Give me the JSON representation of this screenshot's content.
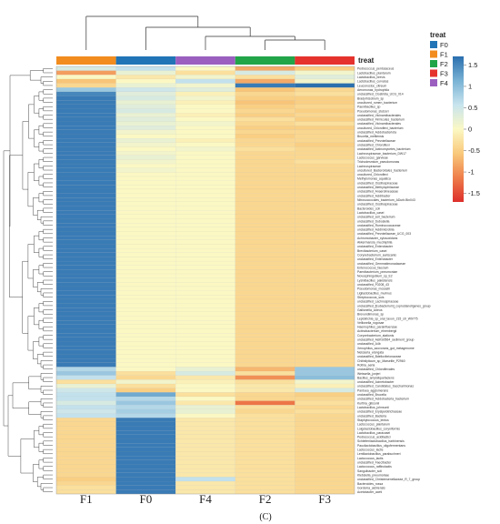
{
  "chart_data": {
    "type": "heatmap",
    "title": "",
    "caption": "(C)",
    "columns": [
      "F1",
      "F0",
      "F4",
      "F2",
      "F3"
    ],
    "annotation": {
      "title": "treat",
      "groups": [
        {
          "name": "F0",
          "color": "#2175b6"
        },
        {
          "name": "F1",
          "color": "#f28c1e"
        },
        {
          "name": "F2",
          "color": "#22a548"
        },
        {
          "name": "F3",
          "color": "#e5322d"
        },
        {
          "name": "F4",
          "color": "#9b5fc0"
        }
      ]
    },
    "colorbar": {
      "ticks": [
        "1.5",
        "1",
        "0.5",
        "0",
        "-0.5",
        "-1",
        "-1.5"
      ],
      "range": [
        -1.7,
        1.7
      ],
      "colors": [
        "#2b6fae",
        "#79b2d4",
        "#c8e4ee",
        "#fbf8c4",
        "#f9c97b",
        "#ee7e4b",
        "#dd2f2b"
      ]
    },
    "rows": [
      {
        "label": "Pediococcus_pentosaceus",
        "values": [
          0.4,
          0.6,
          0.0,
          -0.8,
          -0.5
        ]
      },
      {
        "label": "Lactobacillus_plantarum",
        "values": [
          -0.9,
          0.2,
          -0.3,
          0.4,
          0.1
        ]
      },
      {
        "label": "Lactobacillus_brevis",
        "values": [
          0.0,
          -0.2,
          0.1,
          -0.3,
          0.3
        ]
      },
      {
        "label": "Lactobacillus_curvatus",
        "values": [
          -0.6,
          0.0,
          0.6,
          -0.8,
          0.1
        ]
      },
      {
        "label": "Leuconostoc_citreum",
        "values": [
          -0.4,
          0.2,
          0.1,
          1.6,
          1.7
        ]
      },
      {
        "label": "Aeromonas_hydrophila",
        "values": [
          0.9,
          0.5,
          0.3,
          -0.6,
          -0.4
        ]
      },
      {
        "label": "unclassified_Clostridia_UCG_014",
        "values": [
          1.5,
          0.3,
          -0.1,
          -0.4,
          -0.3
        ]
      },
      {
        "label": "Bradyrhizobium_sp",
        "values": [
          1.6,
          0.4,
          0.1,
          -0.5,
          -0.5
        ]
      },
      {
        "label": "uncultured_rumen_bacterium",
        "values": [
          1.6,
          0.2,
          -0.1,
          -0.6,
          -0.5
        ]
      },
      {
        "label": "Paenibacillus_sp",
        "values": [
          1.6,
          0.3,
          0.0,
          -0.5,
          -0.4
        ]
      },
      {
        "label": "Pseudomonas_stutzeri",
        "values": [
          1.6,
          0.4,
          0.0,
          -0.4,
          -0.5
        ]
      },
      {
        "label": "unclassified_Vicinamibacterales",
        "values": [
          1.6,
          0.2,
          -0.1,
          -0.5,
          -0.4
        ]
      },
      {
        "label": "unclassified_Firmicutes_bacterium",
        "values": [
          1.6,
          0.3,
          0.0,
          -0.3,
          -0.5
        ]
      },
      {
        "label": "unclassified_Vicinamibacterales",
        "values": [
          1.6,
          0.2,
          0.1,
          -0.4,
          -0.3
        ]
      },
      {
        "label": "uncultured_Chloroflexi_bacterium",
        "values": [
          1.6,
          0.3,
          0.0,
          -0.5,
          -0.5
        ]
      },
      {
        "label": "unclassified_Acidobacteriota",
        "values": [
          1.6,
          0.1,
          0.0,
          -0.4,
          -0.4
        ]
      },
      {
        "label": "Brucella_melitensis",
        "values": [
          1.6,
          0.0,
          0.0,
          -0.5,
          -0.4
        ]
      },
      {
        "label": "unclassified_Prevotellaceae",
        "values": [
          1.6,
          0.2,
          -0.1,
          -0.4,
          -0.4
        ]
      },
      {
        "label": "unclassified_Chloroflexi",
        "values": [
          1.6,
          0.1,
          0.0,
          -0.4,
          -0.5
        ]
      },
      {
        "label": "unclassified_Actinomycetes_bacterium",
        "values": [
          1.6,
          0.0,
          0.1,
          -0.3,
          -0.4
        ]
      },
      {
        "label": "Lachnospiraceae_bacterium_DW17",
        "values": [
          1.6,
          0.1,
          0.0,
          -0.4,
          -0.4
        ]
      },
      {
        "label": "Lactococcus_garvieae",
        "values": [
          1.6,
          0.2,
          0.0,
          -0.4,
          -0.4
        ]
      },
      {
        "label": "Trichodesmium_pseudomonas",
        "values": [
          1.6,
          0.1,
          0.0,
          -0.4,
          -0.3
        ]
      },
      {
        "label": "Lachnospiraceae",
        "values": [
          1.6,
          0.0,
          0.0,
          -0.4,
          -0.4
        ]
      },
      {
        "label": "uncultured_Bacteroidales_bacterium",
        "values": [
          1.6,
          0.1,
          0.0,
          -0.4,
          -0.4
        ]
      },
      {
        "label": "uncultured_Chloroflexi",
        "values": [
          1.6,
          0.0,
          0.0,
          -0.4,
          -0.4
        ]
      },
      {
        "label": "Methylomonas_aquatica",
        "values": [
          1.6,
          0.0,
          0.0,
          -0.4,
          -0.4
        ]
      },
      {
        "label": "unclassified_Oscillospiraceae",
        "values": [
          1.6,
          0.0,
          0.0,
          -0.4,
          -0.4
        ]
      },
      {
        "label": "unclassified_Methylophilaceae",
        "values": [
          1.6,
          0.0,
          0.0,
          -0.4,
          -0.4
        ]
      },
      {
        "label": "unclassified_Anaerolineaceae",
        "values": [
          1.6,
          0.0,
          0.0,
          -0.4,
          -0.4
        ]
      },
      {
        "label": "unclassified_Acidibacter",
        "values": [
          1.6,
          0.0,
          0.0,
          -0.4,
          -0.4
        ]
      },
      {
        "label": "Nitrosococcales_bacterium_ADurb.Bin043",
        "values": [
          1.6,
          0.0,
          0.0,
          -0.4,
          -0.4
        ]
      },
      {
        "label": "unclassified_Oscillospiraceae",
        "values": [
          1.6,
          0.0,
          0.0,
          -0.4,
          -0.4
        ]
      },
      {
        "label": "Bacteroides_coli",
        "values": [
          1.6,
          0.0,
          0.0,
          -0.4,
          -0.4
        ]
      },
      {
        "label": "Lactobacillus_casei",
        "values": [
          1.6,
          0.0,
          0.0,
          -0.4,
          -0.4
        ]
      },
      {
        "label": "unclassified_soil_bacterium",
        "values": [
          1.6,
          0.0,
          0.0,
          -0.4,
          -0.4
        ]
      },
      {
        "label": "unclassified_Dubosiella",
        "values": [
          1.6,
          0.0,
          0.0,
          -0.4,
          -0.4
        ]
      },
      {
        "label": "unclassified_Ruminococcaceae",
        "values": [
          1.6,
          0.0,
          0.0,
          -0.4,
          -0.4
        ]
      },
      {
        "label": "unclassified_Acidimicrobiia",
        "values": [
          1.6,
          0.0,
          0.0,
          -0.4,
          -0.4
        ]
      },
      {
        "label": "unclassified_Prevotellaceae_UCG_003",
        "values": [
          1.6,
          0.0,
          0.0,
          -0.4,
          -0.4
        ]
      },
      {
        "label": "Achromobacter_xylosoxidans",
        "values": [
          1.6,
          0.0,
          0.0,
          -0.4,
          -0.4
        ]
      },
      {
        "label": "Akkermansia_muciniphila",
        "values": [
          1.6,
          0.0,
          0.0,
          -0.4,
          -0.4
        ]
      },
      {
        "label": "unclassified_Enterobacter",
        "values": [
          1.6,
          0.0,
          0.0,
          -0.4,
          -0.4
        ]
      },
      {
        "label": "Brevibacterium_casei",
        "values": [
          1.6,
          0.0,
          0.0,
          -0.4,
          -0.4
        ]
      },
      {
        "label": "Corynebacterium_auriscanis",
        "values": [
          1.6,
          0.0,
          0.0,
          -0.4,
          -0.4
        ]
      },
      {
        "label": "unclassified_Enterobacter",
        "values": [
          1.6,
          0.0,
          0.0,
          -0.4,
          -0.4
        ]
      },
      {
        "label": "unclassified_Gemmatimonadaceae",
        "values": [
          1.6,
          0.0,
          0.0,
          -0.4,
          -0.4
        ]
      },
      {
        "label": "Enterococcus_faecium",
        "values": [
          1.6,
          0.0,
          0.0,
          -0.4,
          -0.4
        ]
      },
      {
        "label": "Paenibacterium_pneumoniae",
        "values": [
          1.6,
          0.0,
          0.0,
          -0.4,
          -0.4
        ]
      },
      {
        "label": "Novosphingobium_sp_E2",
        "values": [
          1.6,
          0.0,
          0.0,
          -0.4,
          -0.4
        ]
      },
      {
        "label": "Lysinibacillus_pakistensis",
        "values": [
          1.6,
          0.0,
          0.0,
          -0.4,
          -0.4
        ]
      },
      {
        "label": "unclassified_F0208_43",
        "values": [
          1.6,
          0.0,
          0.0,
          -0.4,
          -0.4
        ]
      },
      {
        "label": "Pseudomonas_mosselii",
        "values": [
          1.6,
          0.0,
          0.0,
          -0.4,
          -0.4
        ]
      },
      {
        "label": "Ligilactobacillus_murinus",
        "values": [
          1.6,
          0.0,
          0.0,
          -0.4,
          -0.4
        ]
      },
      {
        "label": "Streptococcus_suis",
        "values": [
          1.6,
          0.0,
          0.0,
          -0.4,
          -0.4
        ]
      },
      {
        "label": "unclassified_Lachnospiraceae",
        "values": [
          1.6,
          0.0,
          0.0,
          -0.4,
          -0.4
        ]
      },
      {
        "label": "unclassified_[Eubacterium]_coprostanoligenes_group",
        "values": [
          1.6,
          0.0,
          0.0,
          -0.4,
          -0.4
        ]
      },
      {
        "label": "Gallionella_coleus",
        "values": [
          1.6,
          0.0,
          0.0,
          -0.4,
          -0.4
        ]
      },
      {
        "label": "Brevundimonas_sp",
        "values": [
          1.6,
          0.0,
          0.0,
          -0.4,
          -0.4
        ]
      },
      {
        "label": "Leptotrichia_sp_oral_taxon_215_str_W9775",
        "values": [
          1.6,
          0.0,
          0.0,
          -0.4,
          -0.4
        ]
      },
      {
        "label": "Veillonella_rogosae",
        "values": [
          1.6,
          0.0,
          0.0,
          -0.4,
          -0.4
        ]
      },
      {
        "label": "Haemophilus_parainfluenzae",
        "values": [
          1.6,
          0.0,
          0.0,
          -0.4,
          -0.4
        ]
      },
      {
        "label": "Actinobacterium_ehrenbergii",
        "values": [
          1.6,
          0.0,
          0.0,
          -0.4,
          -0.4
        ]
      },
      {
        "label": "Corynebacterium_stationis",
        "values": [
          1.6,
          0.0,
          0.0,
          -0.4,
          -0.4
        ]
      },
      {
        "label": "unclassified_A&KS0564_sediment_group",
        "values": [
          1.6,
          0.0,
          0.0,
          -0.4,
          -0.4
        ]
      },
      {
        "label": "unclassified_A4b",
        "values": [
          1.6,
          0.0,
          0.0,
          -0.4,
          -0.4
        ]
      },
      {
        "label": "Xenophilus_azovorans_gut_metagenome",
        "values": [
          1.6,
          0.0,
          0.0,
          -0.4,
          -0.4
        ]
      },
      {
        "label": "Neisseria_elongata",
        "values": [
          1.6,
          0.0,
          0.0,
          -0.4,
          -0.4
        ]
      },
      {
        "label": "unclassified_Bdellovibrionaceae",
        "values": [
          1.6,
          0.0,
          0.0,
          -0.4,
          -0.4
        ]
      },
      {
        "label": "Chitinilyticum_sp_Marseille_P2960",
        "values": [
          1.6,
          0.0,
          0.0,
          -0.4,
          -0.4
        ]
      },
      {
        "label": "Rothia_aeria",
        "values": [
          1.6,
          0.0,
          0.0,
          -0.4,
          -0.4
        ]
      },
      {
        "label": "unclassified_Chloroflexales",
        "values": [
          0.7,
          0.0,
          0.2,
          -0.7,
          0.9
        ]
      },
      {
        "label": "Weissella_jonjeri",
        "values": [
          0.9,
          -0.3,
          0.4,
          -0.3,
          0.9
        ]
      },
      {
        "label": "Bacillus_amyloliquefaciens",
        "values": [
          0.6,
          -0.4,
          -0.2,
          -1.0,
          1.0
        ]
      },
      {
        "label": "unclassified_Acinetobacter",
        "values": [
          -0.3,
          0.1,
          -0.1,
          -0.3,
          0.1
        ]
      },
      {
        "label": "unclassified_Candidatus_Saccharimonas",
        "values": [
          0.2,
          -0.3,
          0.0,
          -0.2,
          -0.1
        ]
      },
      {
        "label": "Pantoea_agglomerans",
        "values": [
          0.5,
          -0.5,
          0.0,
          -0.2,
          0.4
        ]
      },
      {
        "label": "unclassified_Brucella",
        "values": [
          0.6,
          1.2,
          -0.3,
          -0.4,
          -0.5
        ]
      },
      {
        "label": "unclassified_Acidobacteria_bacterium",
        "values": [
          0.6,
          0.7,
          0.0,
          -0.4,
          -0.4
        ]
      },
      {
        "label": "Kurthia_gibsonii",
        "values": [
          0.4,
          0.9,
          -0.2,
          -1.2,
          -0.3
        ]
      },
      {
        "label": "Lactobacillus_johnsonii",
        "values": [
          0.6,
          0.7,
          0.2,
          -0.3,
          -0.4
        ]
      },
      {
        "label": "unclassified_Erysipelotrichaceae",
        "values": [
          0.5,
          0.8,
          0.2,
          -0.4,
          -0.3
        ]
      },
      {
        "label": "unclassified_Bacteria",
        "values": [
          0.6,
          0.7,
          0.0,
          -0.3,
          -0.4
        ]
      },
      {
        "label": "Staphylococcus_lentus",
        "values": [
          -0.4,
          1.6,
          -0.2,
          -0.3,
          -0.4
        ]
      },
      {
        "label": "Lactococcus_plantarum",
        "values": [
          -0.4,
          1.6,
          -0.2,
          -0.3,
          -0.4
        ]
      },
      {
        "label": "Loigolactobacillus_coryniformis",
        "values": [
          -0.4,
          1.6,
          -0.2,
          -0.3,
          -0.4
        ]
      },
      {
        "label": "Lactobacillus_paracasei",
        "values": [
          -0.4,
          1.6,
          -0.2,
          -0.3,
          -0.4
        ]
      },
      {
        "label": "Pediococcus_acidilactici",
        "values": [
          -0.4,
          1.6,
          -0.2,
          -0.3,
          -0.4
        ]
      },
      {
        "label": "Schleiferilactobacillus_harbinensis",
        "values": [
          -0.4,
          1.6,
          -0.2,
          -0.3,
          -0.4
        ]
      },
      {
        "label": "Paucilactobacillus_oligofermentans",
        "values": [
          -0.4,
          1.6,
          -0.2,
          -0.3,
          -0.4
        ]
      },
      {
        "label": "Lactococcus_lactis",
        "values": [
          -0.4,
          1.6,
          -0.2,
          -0.3,
          -0.4
        ]
      },
      {
        "label": "Lentilactobacillus_parabuchneri",
        "values": [
          -0.4,
          1.6,
          -0.2,
          -0.3,
          -0.4
        ]
      },
      {
        "label": "Lactococcus_lactis",
        "values": [
          -0.4,
          1.6,
          -0.2,
          -0.3,
          -0.4
        ]
      },
      {
        "label": "unclassified_Faecibacter",
        "values": [
          -0.4,
          1.6,
          -0.2,
          -0.3,
          -0.4
        ]
      },
      {
        "label": "Lactococcus_raffinolactis",
        "values": [
          -0.4,
          1.6,
          -0.2,
          -0.3,
          -0.4
        ]
      },
      {
        "label": "Sanguibacter_soli",
        "values": [
          -0.4,
          1.6,
          -0.2,
          -0.3,
          -0.4
        ]
      },
      {
        "label": "Klebsiella_pneumoniae",
        "values": [
          -0.4,
          1.6,
          -0.2,
          -0.3,
          -0.4
        ]
      },
      {
        "label": "unclassified_Christensenellaceae_R_7_group",
        "values": [
          -0.5,
          1.6,
          0.6,
          -0.3,
          -0.4
        ]
      },
      {
        "label": "Bacteroides_rossa",
        "values": [
          -0.4,
          1.6,
          -0.2,
          -0.3,
          -0.4
        ]
      },
      {
        "label": "Gordonia_aichiensis",
        "values": [
          -0.3,
          1.6,
          -0.2,
          -0.3,
          -0.4
        ]
      },
      {
        "label": "Acetobacter_aceti",
        "values": [
          -0.3,
          1.6,
          -0.2,
          -0.3,
          -0.4
        ]
      }
    ]
  }
}
